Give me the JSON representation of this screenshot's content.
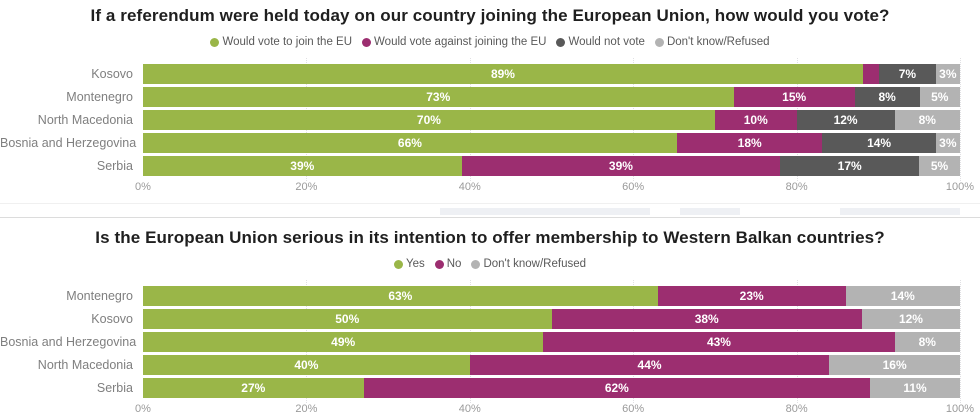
{
  "colors": {
    "join_yes_green": "#9ab648",
    "against_no_magenta": "#9c2e70",
    "would_not_vote_gray": "#595959",
    "dont_know_lightgray": "#b3b3b3",
    "title_text": "#1f1f1f",
    "category_label": "#7f7f7f",
    "axis_tick": "#9a9a9a"
  },
  "chart_data": [
    {
      "type": "bar",
      "orientation": "horizontal",
      "stacked": true,
      "title": "If a referendum were held today on our country joining the European Union, how would you vote?",
      "legend_position": "top",
      "grid": true,
      "xlim": [
        0,
        100
      ],
      "x_ticks": [
        "0%",
        "20%",
        "40%",
        "60%",
        "80%",
        "100%"
      ],
      "categories": [
        "Kosovo",
        "Montenegro",
        "North Macedonia",
        "Bosnia and Herzegovina",
        "Serbia"
      ],
      "series": [
        {
          "name": "Would vote to join the EU",
          "color": "#9ab648",
          "values": [
            89,
            73,
            70,
            66,
            39
          ],
          "labels": [
            "89%",
            "73%",
            "70%",
            "66%",
            "39%"
          ]
        },
        {
          "name": "Would vote against joining the EU",
          "color": "#9c2e70",
          "values": [
            2,
            15,
            10,
            18,
            39
          ],
          "labels": [
            "",
            "15%",
            "10%",
            "18%",
            "39%"
          ]
        },
        {
          "name": "Would not vote",
          "color": "#595959",
          "values": [
            7,
            8,
            12,
            14,
            17
          ],
          "labels": [
            "7%",
            "8%",
            "12%",
            "14%",
            "17%"
          ]
        },
        {
          "name": "Don't know/Refused",
          "color": "#b3b3b3",
          "values": [
            3,
            5,
            8,
            3,
            5
          ],
          "labels": [
            "3%",
            "5%",
            "8%",
            "3%",
            "5%"
          ]
        }
      ]
    },
    {
      "type": "bar",
      "orientation": "horizontal",
      "stacked": true,
      "title": "Is the European Union serious in its intention to offer membership to Western Balkan countries?",
      "legend_position": "top",
      "grid": true,
      "xlim": [
        0,
        100
      ],
      "x_ticks": [
        "0%",
        "20%",
        "40%",
        "60%",
        "80%",
        "100%"
      ],
      "categories": [
        "Montenegro",
        "Kosovo",
        "Bosnia and Herzegovina",
        "North Macedonia",
        "Serbia"
      ],
      "series": [
        {
          "name": "Yes",
          "color": "#9ab648",
          "values": [
            63,
            50,
            49,
            40,
            27
          ],
          "labels": [
            "63%",
            "50%",
            "49%",
            "40%",
            "27%"
          ]
        },
        {
          "name": "No",
          "color": "#9c2e70",
          "values": [
            23,
            38,
            43,
            44,
            62
          ],
          "labels": [
            "23%",
            "38%",
            "43%",
            "44%",
            "62%"
          ]
        },
        {
          "name": "Don't know/Refused",
          "color": "#b3b3b3",
          "values": [
            14,
            12,
            8,
            16,
            11
          ],
          "labels": [
            "14%",
            "12%",
            "8%",
            "16%",
            "11%"
          ]
        }
      ]
    }
  ]
}
